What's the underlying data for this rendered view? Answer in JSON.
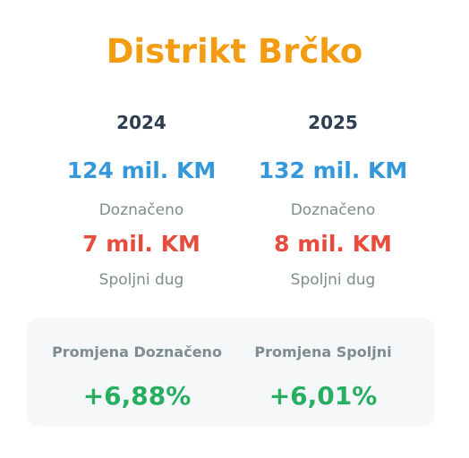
{
  "title": "Distrikt Brčko",
  "colors": {
    "title": "#f39c12",
    "budget": "#3498db",
    "debt": "#e74c3c",
    "change": "#27ae60"
  },
  "years": [
    {
      "year": "2024",
      "budget": "124 mil. KM",
      "budget_label": "Doznačeno",
      "debt": "7 mil. KM",
      "debt_label": "Spoljni dug"
    },
    {
      "year": "2025",
      "budget": "132 mil. KM",
      "budget_label": "Doznačeno",
      "debt": "8 mil. KM",
      "debt_label": "Spoljni dug"
    }
  ],
  "changes": [
    {
      "label": "Promjena Doznačeno",
      "value": "+6,88%"
    },
    {
      "label": "Promjena Spoljni",
      "value": "+6,01%"
    }
  ]
}
